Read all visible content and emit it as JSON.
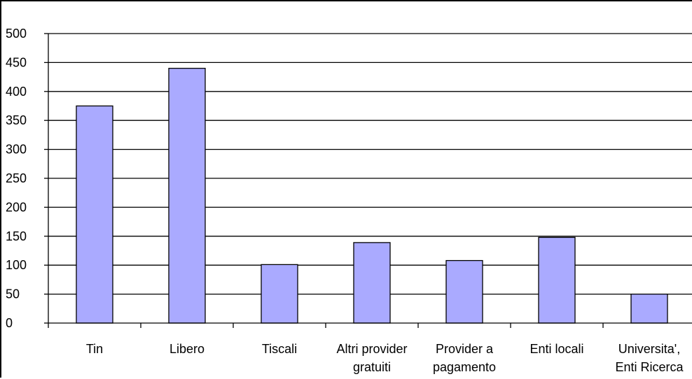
{
  "chart_data": {
    "type": "bar",
    "categories": [
      [
        "Tin"
      ],
      [
        "Libero"
      ],
      [
        "Tiscali"
      ],
      [
        "Altri provider",
        "gratuiti"
      ],
      [
        "Provider a",
        "pagamento"
      ],
      [
        "Enti locali"
      ],
      [
        "Universita',",
        "Enti Ricerca"
      ]
    ],
    "values": [
      375,
      440,
      101,
      139,
      108,
      148,
      50
    ],
    "ylim": [
      0,
      500
    ],
    "yticks": [
      0,
      50,
      100,
      150,
      200,
      250,
      300,
      350,
      400,
      450,
      500
    ],
    "grid": true,
    "bar_color": "#aaaaff",
    "bar_edge_color": "#000000"
  }
}
